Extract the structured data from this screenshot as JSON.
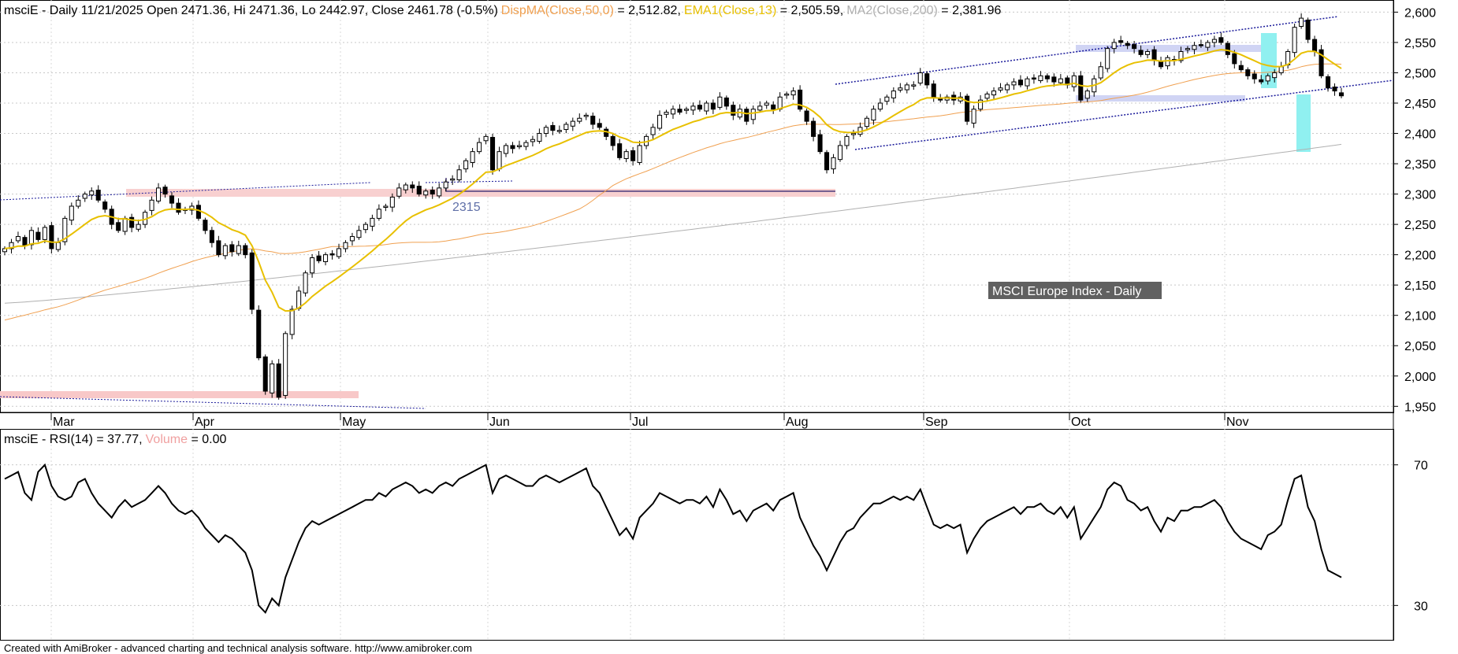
{
  "header": {
    "price_prefix": "msciE - Daily 11/21/2025 Open 2471.36, Hi 2471.36, Lo 2442.97, Close 2461.78 (-0.5%)",
    "disp_label": "DispMA(Close,50,0)",
    "disp_value": " = 2,512.82,",
    "ema_label": "EMA1(Close,13)",
    "ema_value": " = 2,505.59,",
    "ma2_label": "MA2(Close,200)",
    "ma2_value": " = 2,381.96",
    "rsi_label": "msciE - RSI(14) = 37.77,",
    "volume_label": "Volume",
    "volume_value": " = 0.00"
  },
  "annotations": {
    "index_title": "MSCI Europe Index - Daily",
    "level_label": "2315"
  },
  "footer": "Created with AmiBroker - advanced charting and technical analysis software. http://www.amibroker.com",
  "colors": {
    "disp_ma": "#f0a050",
    "ema": "#e8c000",
    "ma2": "#b0b0b0",
    "rsi": "#000000",
    "channel": "#1a1a9a",
    "level_line": "#4a3a7a",
    "support_band": "#f8c8c8",
    "resist_band": "#c8ccf0",
    "highlight": "#80f0f0"
  },
  "chart_data": [
    {
      "type": "candlestick",
      "ylim": [
        1940,
        2620
      ],
      "y_ticks": [
        1950,
        2000,
        2050,
        2100,
        2150,
        2200,
        2250,
        2300,
        2350,
        2400,
        2450,
        2500,
        2550,
        2600
      ],
      "y_tick_labels": [
        "1,950",
        "2,000",
        "2,050",
        "2,100",
        "2,150",
        "2,200",
        "2,250",
        "2,300",
        "2,350",
        "2,400",
        "2,450",
        "2,500",
        "2,550",
        "2,600"
      ],
      "month_labels": [
        "Mar",
        "Apr",
        "May",
        "Jun",
        "Jul",
        "Aug",
        "Sep",
        "Oct",
        "Nov"
      ],
      "close": [
        2210,
        2220,
        2230,
        2215,
        2240,
        2225,
        2245,
        2210,
        2220,
        2260,
        2280,
        2290,
        2300,
        2305,
        2290,
        2275,
        2250,
        2240,
        2260,
        2245,
        2250,
        2270,
        2290,
        2310,
        2300,
        2285,
        2270,
        2275,
        2280,
        2260,
        2240,
        2220,
        2200,
        2215,
        2205,
        2215,
        2200,
        2110,
        2030,
        1975,
        2020,
        1965,
        2070,
        2110,
        2140,
        2170,
        2195,
        2190,
        2200,
        2200,
        2210,
        2220,
        2230,
        2240,
        2250,
        2260,
        2275,
        2280,
        2295,
        2310,
        2315,
        2310,
        2300,
        2305,
        2300,
        2310,
        2320,
        2325,
        2340,
        2355,
        2370,
        2385,
        2395,
        2340,
        2370,
        2380,
        2375,
        2380,
        2385,
        2390,
        2400,
        2410,
        2405,
        2405,
        2415,
        2420,
        2425,
        2430,
        2415,
        2410,
        2395,
        2380,
        2360,
        2370,
        2355,
        2380,
        2395,
        2410,
        2430,
        2435,
        2440,
        2435,
        2440,
        2445,
        2440,
        2450,
        2440,
        2460,
        2445,
        2430,
        2440,
        2420,
        2440,
        2445,
        2450,
        2440,
        2460,
        2465,
        2470,
        2440,
        2420,
        2395,
        2370,
        2340,
        2360,
        2380,
        2395,
        2400,
        2410,
        2425,
        2440,
        2450,
        2460,
        2470,
        2475,
        2480,
        2480,
        2500,
        2480,
        2460,
        2455,
        2460,
        2455,
        2460,
        2420,
        2440,
        2455,
        2465,
        2470,
        2475,
        2480,
        2485,
        2480,
        2490,
        2490,
        2495,
        2490,
        2485,
        2490,
        2480,
        2495,
        2455,
        2470,
        2490,
        2510,
        2540,
        2550,
        2550,
        2545,
        2540,
        2530,
        2535,
        2520,
        2510,
        2525,
        2520,
        2535,
        2540,
        2545,
        2545,
        2550,
        2555,
        2550,
        2530,
        2515,
        2505,
        2495,
        2490,
        2485,
        2495,
        2500,
        2510,
        2535,
        2575,
        2590,
        2555,
        2535,
        2495,
        2475,
        2470,
        2462
      ]
    },
    {
      "type": "line",
      "ylim": [
        20,
        80
      ],
      "y_ticks": [
        30,
        70
      ],
      "y_tick_labels": [
        "30",
        "70"
      ],
      "series": [
        {
          "values": [
            66,
            67,
            68,
            62,
            60,
            68,
            70,
            64,
            61,
            60,
            61,
            65,
            66,
            62,
            59,
            57,
            55,
            58,
            60,
            58,
            59,
            60,
            62,
            64,
            62,
            59,
            57,
            56,
            57,
            55,
            52,
            50,
            48,
            50,
            49,
            47,
            45,
            40,
            30,
            28,
            32,
            30,
            38,
            43,
            48,
            52,
            54,
            53,
            54,
            55,
            56,
            57,
            58,
            59,
            60,
            60,
            62,
            61,
            63,
            64,
            65,
            64,
            62,
            63,
            62,
            64,
            65,
            64,
            66,
            67,
            68,
            69,
            70,
            62,
            66,
            67,
            66,
            65,
            64,
            64,
            66,
            67,
            66,
            65,
            66,
            67,
            68,
            69,
            64,
            62,
            58,
            54,
            50,
            52,
            49,
            55,
            57,
            59,
            62,
            61,
            60,
            59,
            60,
            60,
            59,
            61,
            58,
            63,
            60,
            56,
            57,
            54,
            57,
            58,
            59,
            57,
            60,
            61,
            62,
            55,
            51,
            47,
            44,
            40,
            44,
            48,
            51,
            52,
            55,
            57,
            59,
            59,
            60,
            61,
            60,
            61,
            60,
            63,
            58,
            53,
            52,
            53,
            52,
            53,
            45,
            49,
            52,
            54,
            55,
            56,
            57,
            58,
            56,
            58,
            58,
            59,
            57,
            56,
            58,
            55,
            58,
            49,
            52,
            55,
            58,
            63,
            65,
            64,
            60,
            59,
            57,
            58,
            54,
            51,
            55,
            54,
            57,
            57,
            58,
            58,
            59,
            60,
            58,
            54,
            51,
            49,
            48,
            47,
            46,
            50,
            51,
            53,
            60,
            66,
            67,
            58,
            54,
            46,
            40,
            39,
            38
          ]
        }
      ]
    }
  ]
}
